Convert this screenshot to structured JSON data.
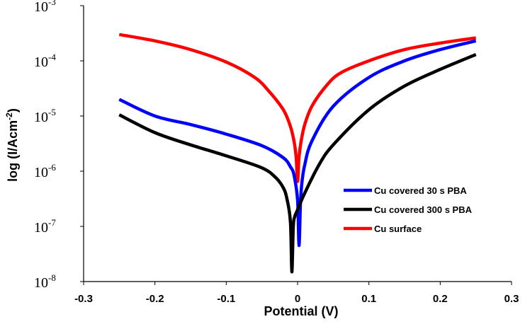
{
  "chart_data": {
    "type": "line",
    "title": "",
    "xlabel": "Potential (V)",
    "ylabel": "log (I/Acm",
    "ylabel_sup": "-2",
    "ylabel_close": ")",
    "xlim": [
      -0.3,
      0.3
    ],
    "ylim_log10": [
      -8,
      -3
    ],
    "y_scale": "log",
    "x_ticks": [
      "-0.3",
      "-0.2",
      "-0.1",
      "0",
      "0.1",
      "0.2",
      "0.3"
    ],
    "y_ticks": [
      {
        "base": "10",
        "exp": "-3"
      },
      {
        "base": "10",
        "exp": "-4"
      },
      {
        "base": "10",
        "exp": "-5"
      },
      {
        "base": "10",
        "exp": "-6"
      },
      {
        "base": "10",
        "exp": "-7"
      },
      {
        "base": "10",
        "exp": "-8"
      }
    ],
    "grid": false,
    "legend_position": "center-right",
    "series": [
      {
        "name": "Cu covered 30 s PBA",
        "color": "#0000ff",
        "x": [
          -0.25,
          -0.2,
          -0.15,
          -0.1,
          -0.05,
          -0.02,
          -0.01,
          -0.005,
          0.0,
          0.002,
          0.004,
          0.006,
          0.01,
          0.02,
          0.05,
          0.1,
          0.15,
          0.2,
          0.25
        ],
        "y": [
          2e-05,
          1e-05,
          7e-06,
          4.7e-06,
          2.9e-06,
          1.75e-06,
          1.2e-06,
          8.5e-07,
          3e-07,
          4.5e-08,
          2.5e-07,
          6e-07,
          1.3e-06,
          3.5e-06,
          1.5e-05,
          5e-05,
          0.0001,
          0.00016,
          0.00023
        ]
      },
      {
        "name": "Cu covered 300 s PBA",
        "color": "#000000",
        "x": [
          -0.25,
          -0.2,
          -0.15,
          -0.1,
          -0.05,
          -0.03,
          -0.02,
          -0.015,
          -0.01,
          -0.008,
          -0.006,
          -0.004,
          0.0,
          0.01,
          0.03,
          0.05,
          0.1,
          0.15,
          0.2,
          0.25
        ],
        "y": [
          1.05e-05,
          5e-06,
          3e-06,
          1.9e-06,
          1.15e-06,
          7.5e-07,
          5e-07,
          3.2e-07,
          1.2e-07,
          1.5e-08,
          1e-07,
          1.5e-07,
          2e-07,
          4e-07,
          1.3e-06,
          3e-06,
          1.3e-05,
          3.5e-05,
          7e-05,
          0.00013
        ]
      },
      {
        "name": "Cu surface",
        "color": "#ff0000",
        "x": [
          -0.25,
          -0.2,
          -0.15,
          -0.1,
          -0.06,
          -0.04,
          -0.02,
          -0.01,
          -0.005,
          -0.002,
          0.0,
          0.002,
          0.005,
          0.01,
          0.02,
          0.04,
          0.06,
          0.1,
          0.15,
          0.2,
          0.25
        ],
        "y": [
          0.0003,
          0.00023,
          0.00016,
          9.5e-05,
          5e-05,
          2.8e-05,
          1.3e-05,
          6.5e-06,
          3.5e-06,
          1.8e-06,
          6.5e-07,
          1.8e-06,
          3.5e-06,
          7e-06,
          1.5e-05,
          3.5e-05,
          6e-05,
          0.0001,
          0.00016,
          0.00021,
          0.00026
        ]
      }
    ]
  }
}
